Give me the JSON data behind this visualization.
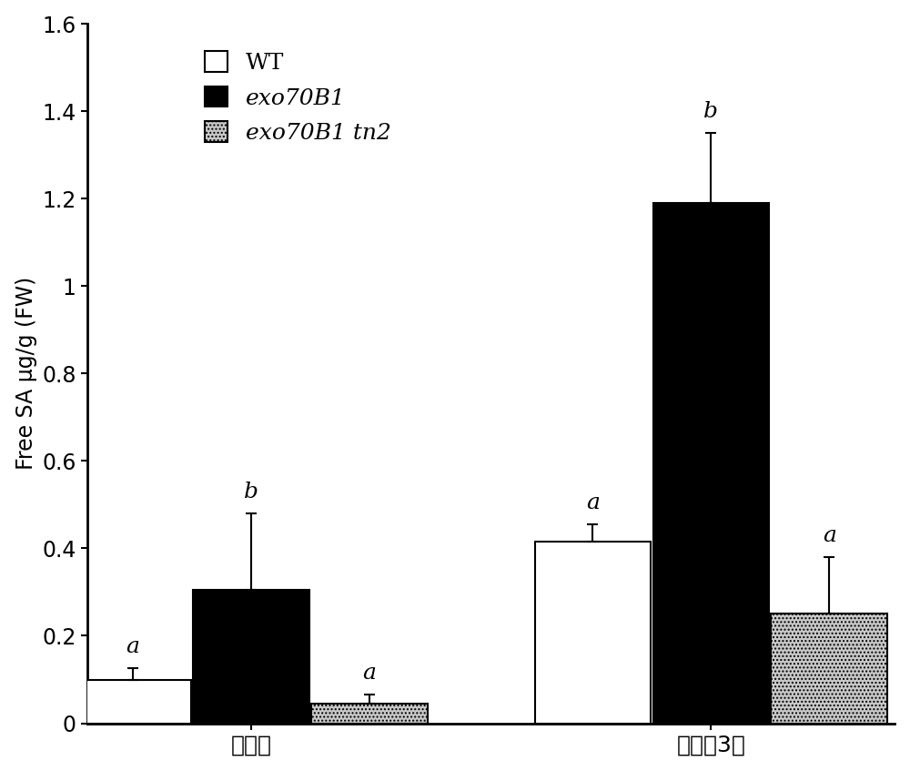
{
  "groups": [
    "未接菌",
    "接菌后3天"
  ],
  "series": [
    "WT",
    "exo70B1",
    "exo70B1 tn2"
  ],
  "values": [
    [
      0.1,
      0.305,
      0.045
    ],
    [
      0.415,
      1.19,
      0.25
    ]
  ],
  "errors": [
    [
      0.025,
      0.175,
      0.02
    ],
    [
      0.04,
      0.16,
      0.13
    ]
  ],
  "letters": [
    [
      "a",
      "b",
      "a"
    ],
    [
      "a",
      "b",
      "a"
    ]
  ],
  "bar_colors": [
    "#ffffff",
    "#000000",
    "#c8c8c8"
  ],
  "bar_edgecolors": [
    "#000000",
    "#000000",
    "#000000"
  ],
  "bar_hatch": [
    null,
    null,
    "...."
  ],
  "ylabel": "Free SA μg/g (FW)",
  "ylim": [
    0,
    1.6
  ],
  "yticks": [
    0.0,
    0.2,
    0.4,
    0.6,
    0.8,
    1.0,
    1.2,
    1.4,
    1.6
  ],
  "legend_labels": [
    "WT",
    "exo70B1",
    "exo70B1 tn2"
  ],
  "legend_italic": [
    false,
    true,
    true
  ],
  "bar_width": 0.18,
  "background_color": "#ffffff",
  "fontsize": 18,
  "letter_fontsize": 18,
  "tick_fontsize": 17,
  "ylabel_fontsize": 17
}
